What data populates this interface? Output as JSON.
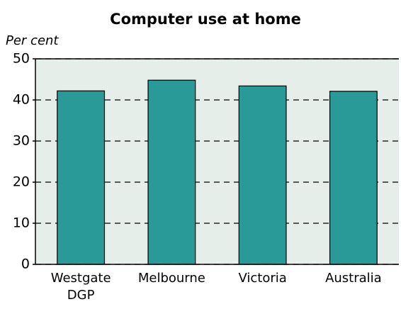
{
  "chart_data": {
    "type": "bar",
    "title": "Computer use at home",
    "y_label": "Per cent",
    "categories": [
      "Westgate DGP",
      "Melbourne",
      "Victoria",
      "Australia"
    ],
    "values": [
      42.2,
      44.8,
      43.4,
      42.1
    ],
    "color": "#2a9a98",
    "ylim": [
      0,
      50
    ],
    "yticks": [
      0,
      10,
      20,
      30,
      40,
      50
    ],
    "grid": true
  }
}
